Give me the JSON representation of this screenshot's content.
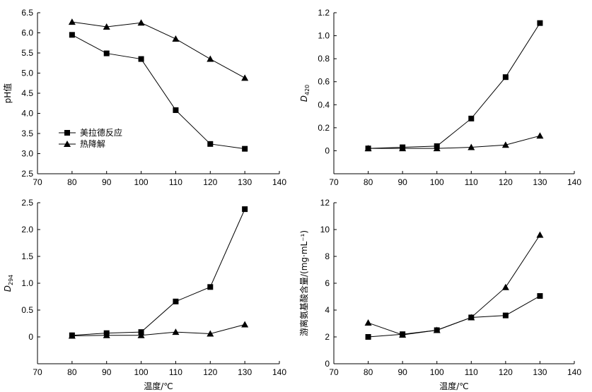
{
  "chart_data": [
    {
      "id": "ph",
      "type": "line",
      "x": [
        80,
        90,
        100,
        110,
        120,
        130
      ],
      "xlim": [
        70,
        140
      ],
      "xticks": [
        "70",
        "80",
        "90",
        "100",
        "110",
        "120",
        "130",
        "140"
      ],
      "ylim": [
        2.5,
        6.5
      ],
      "yticks": [
        "2.5",
        "3.0",
        "3.5",
        "4.0",
        "4.5",
        "5.0",
        "5.5",
        "6.0",
        "6.5"
      ],
      "xlabel": "",
      "ylabel": "pH值",
      "legend_position": "lower-left",
      "series": [
        {
          "name": "美拉德反应",
          "marker": "square",
          "values": [
            5.95,
            5.49,
            5.35,
            4.08,
            3.24,
            3.12
          ]
        },
        {
          "name": "热降解",
          "marker": "triangle",
          "values": [
            6.27,
            6.15,
            6.25,
            5.85,
            5.35,
            4.88
          ]
        }
      ]
    },
    {
      "id": "d420",
      "type": "line",
      "x": [
        80,
        90,
        100,
        110,
        120,
        130
      ],
      "xlim": [
        70,
        140
      ],
      "xticks": [
        "70",
        "80",
        "90",
        "100",
        "110",
        "120",
        "130",
        "140"
      ],
      "ylim": [
        -0.2,
        1.2
      ],
      "yticks": [
        "0",
        "0.2",
        "0.4",
        "0.6",
        "0.8",
        "1.0",
        "1.2"
      ],
      "xlabel": "",
      "ylabel_main": "D",
      "ylabel_sub": "420",
      "series": [
        {
          "marker": "square",
          "values": [
            0.02,
            0.03,
            0.04,
            0.28,
            0.64,
            1.11
          ]
        },
        {
          "marker": "triangle",
          "values": [
            0.02,
            0.02,
            0.02,
            0.03,
            0.05,
            0.13
          ]
        }
      ]
    },
    {
      "id": "d294",
      "type": "line",
      "x": [
        80,
        90,
        100,
        110,
        120,
        130
      ],
      "xlim": [
        70,
        140
      ],
      "xticks": [
        "70",
        "80",
        "90",
        "100",
        "110",
        "120",
        "130",
        "140"
      ],
      "ylim": [
        -0.5,
        2.5
      ],
      "yticks": [
        "0",
        "0.5",
        "1.0",
        "1.5",
        "2.0",
        "2.5"
      ],
      "xlabel": "温度/℃",
      "ylabel_main": "D",
      "ylabel_sub": "294",
      "series": [
        {
          "marker": "square",
          "values": [
            0.03,
            0.07,
            0.09,
            0.66,
            0.93,
            2.38
          ]
        },
        {
          "marker": "triangle",
          "values": [
            0.02,
            0.03,
            0.03,
            0.09,
            0.06,
            0.23
          ]
        }
      ]
    },
    {
      "id": "aa",
      "type": "line",
      "x": [
        80,
        90,
        100,
        110,
        120,
        130
      ],
      "xlim": [
        70,
        140
      ],
      "xticks": [
        "70",
        "80",
        "90",
        "100",
        "110",
        "120",
        "130",
        "140"
      ],
      "ylim": [
        0,
        12
      ],
      "yticks": [
        "0",
        "2",
        "4",
        "6",
        "8",
        "10",
        "12"
      ],
      "xlabel": "温度/℃",
      "ylabel": "游离氨基酸含量/(mg·mL⁻¹)",
      "series": [
        {
          "marker": "square",
          "values": [
            2.0,
            2.2,
            2.5,
            3.45,
            3.6,
            5.05
          ]
        },
        {
          "marker": "triangle",
          "values": [
            3.05,
            2.15,
            2.5,
            3.45,
            5.7,
            9.6
          ]
        }
      ]
    }
  ]
}
